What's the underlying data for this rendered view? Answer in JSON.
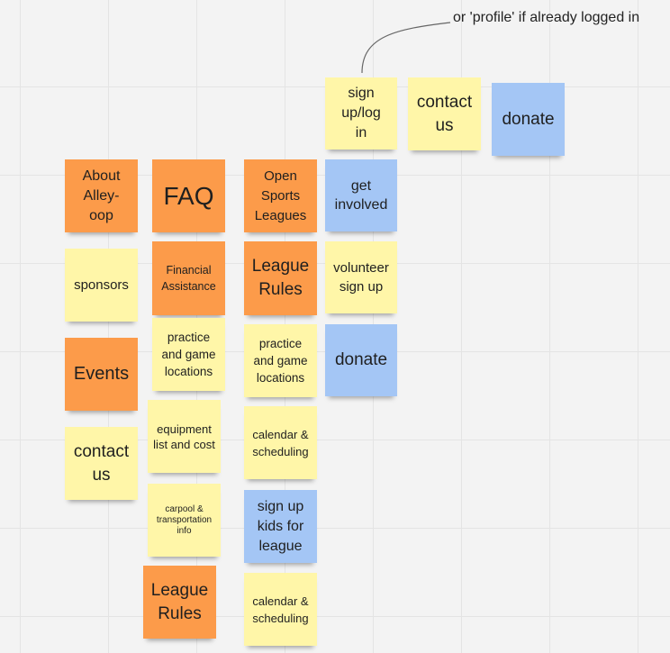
{
  "annotation": "or 'profile' if already logged in",
  "colors": {
    "yellow": "#fff6a8",
    "orange": "#fc9b4a",
    "blue": "#a4c6f5",
    "canvas": "#f3f3f3"
  },
  "notes": {
    "sign_up": "sign up/log in",
    "contact_top": "contact us",
    "donate_top": "donate",
    "about": "About Alley-oop",
    "faq": "FAQ",
    "open_sports": "Open Sports Leagues",
    "get_involved": "get involved",
    "sponsors": "sponsors",
    "financial": "Financial Assistance",
    "league_rules_1": "League Rules",
    "volunteer": "volunteer sign up",
    "events": "Events",
    "practice_1": "practice and game locations",
    "practice_2": "practice and game locations",
    "donate_mid": "donate",
    "contact_left": "contact us",
    "equipment": "equipment list and cost",
    "calendar_1": "calendar & scheduling",
    "carpool": "carpool & transportation info",
    "sign_up_kids": "sign up kids for league",
    "league_rules_2": "League Rules",
    "calendar_2": "calendar & scheduling"
  }
}
